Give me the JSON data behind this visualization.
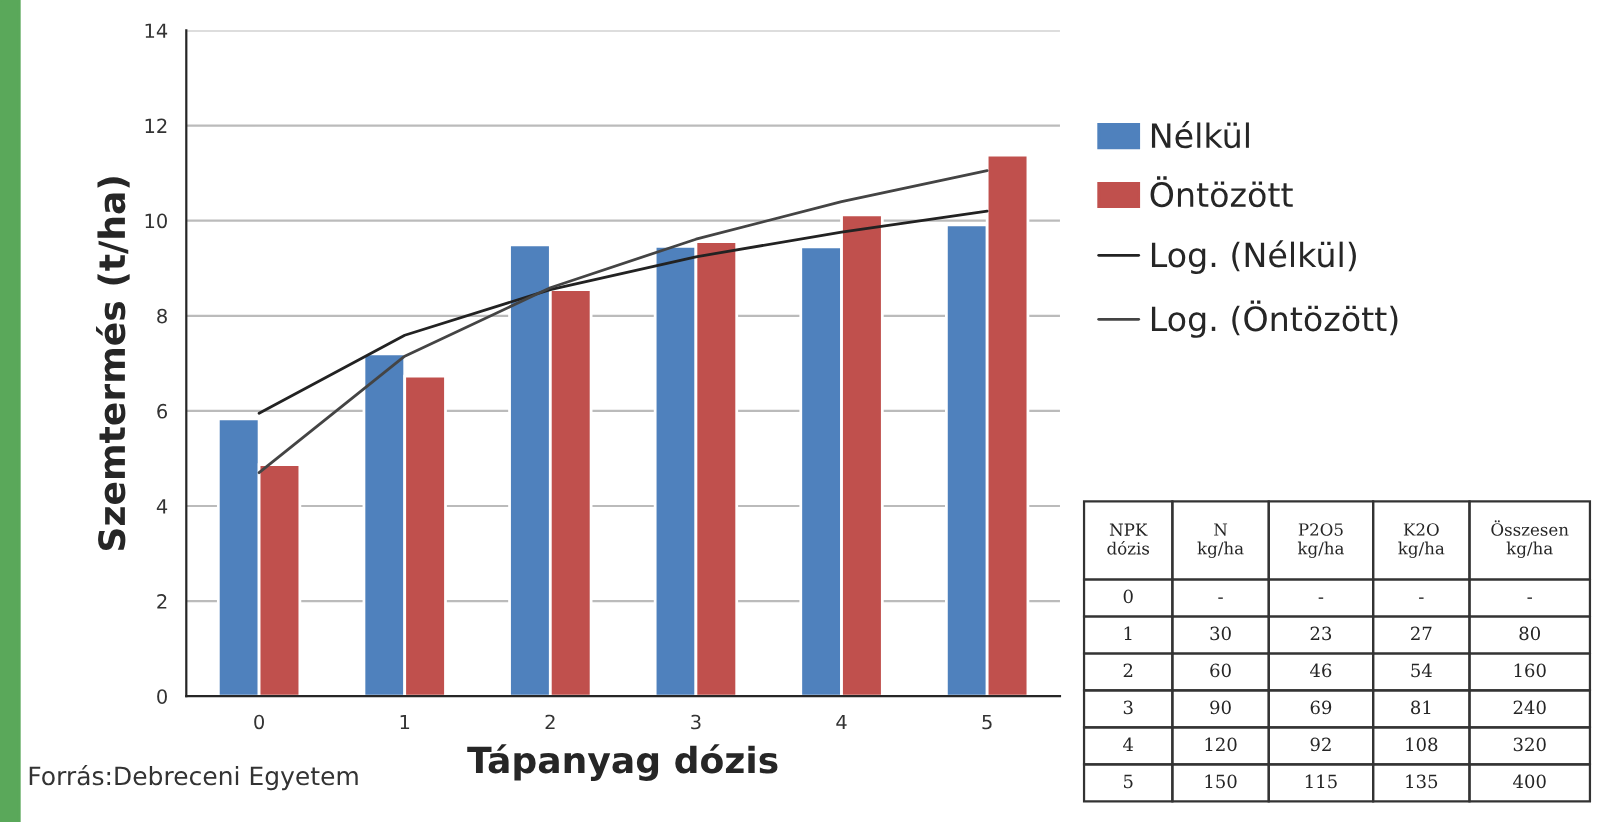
{
  "chart_data": {
    "type": "bar",
    "xlabel": "Tápanyag dózis",
    "ylabel": "Szemtermés (t/ha)",
    "categories": [
      "0",
      "1",
      "2",
      "3",
      "4",
      "5"
    ],
    "series": [
      {
        "name": "Nélkül",
        "color": "#4f81bd",
        "values": [
          5.83,
          7.2,
          9.49,
          9.46,
          9.45,
          9.91
        ]
      },
      {
        "name": "Öntözött",
        "color": "#c0504d",
        "values": [
          4.87,
          6.73,
          8.55,
          9.56,
          10.12,
          11.38
        ]
      },
      {
        "name": "Log. (Nélkül)",
        "type": "line",
        "color": "#222222",
        "values": [
          5.95,
          7.59,
          8.55,
          9.24,
          9.76,
          10.2
        ]
      },
      {
        "name": "Log. (Öntözött)",
        "type": "line",
        "color": "#444444",
        "values": [
          4.7,
          7.15,
          8.59,
          9.61,
          10.4,
          11.05
        ]
      }
    ],
    "ylim": [
      0,
      14
    ],
    "yticks": [
      0,
      2,
      4,
      6,
      8,
      10,
      12,
      14
    ],
    "grid": "y",
    "legend": "right",
    "annotations": [
      "Forrás:Debreceni Egyetem",
      "NPK\ndózis",
      "N\nkg/ha",
      "P2O5\nkg/ha",
      "K2O\nkg/ha",
      "Összesen\nkg/ha",
      "0",
      "-",
      "-",
      "-",
      "-",
      "1",
      "30",
      "23",
      "27",
      "80",
      "2",
      "60",
      "46",
      "54",
      "160",
      "3",
      "90",
      "69",
      "81",
      "240",
      "4",
      "120",
      "92",
      "108",
      "320",
      "5",
      "150",
      "115",
      "135",
      "400"
    ]
  }
}
